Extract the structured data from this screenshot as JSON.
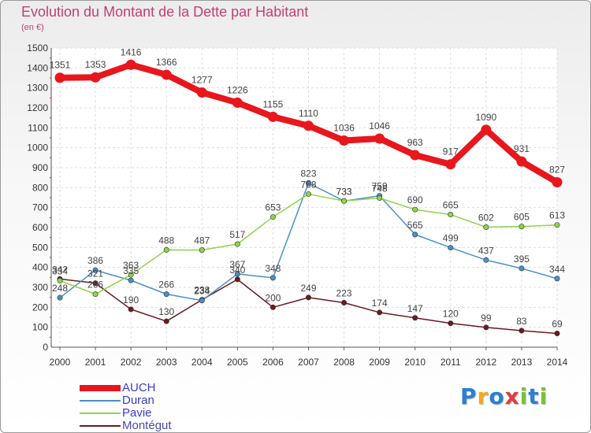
{
  "title": "Evolution du Montant de la Dette par Habitant",
  "subtitle": "(en €)",
  "logo": {
    "text": "Proxiti",
    "letters": [
      {
        "char": "P",
        "color": "#2a7fd4"
      },
      {
        "char": "r",
        "color": "#f5a623"
      },
      {
        "char": "o",
        "color": "#2a7fd4"
      },
      {
        "char": "x",
        "color": "#e03c3c"
      },
      {
        "char": "i",
        "color": "#7cbf3a"
      },
      {
        "char": "t",
        "color": "#2a7fd4"
      },
      {
        "char": "i",
        "color": "#7cbf3a"
      }
    ]
  },
  "chart_data": {
    "type": "line",
    "title": "Evolution du Montant de la Dette par Habitant",
    "subtitle": "(en €)",
    "x": [
      "2000",
      "2001",
      "2002",
      "2003",
      "2004",
      "2005",
      "2006",
      "2007",
      "2008",
      "2009",
      "2010",
      "2011",
      "2012",
      "2013",
      "2014"
    ],
    "ylim": [
      0,
      1500
    ],
    "yticks": [
      0,
      100,
      200,
      300,
      400,
      500,
      600,
      700,
      800,
      900,
      1000,
      1100,
      1200,
      1300,
      1400,
      1500
    ],
    "grid": true,
    "legend_position": "bottom-left",
    "series": [
      {
        "name": "AUCH",
        "color": "#e8161d",
        "values": [
          1351,
          1353,
          1416,
          1366,
          1277,
          1226,
          1155,
          1110,
          1036,
          1046,
          963,
          917,
          1090,
          931,
          827
        ]
      },
      {
        "name": "Duran",
        "color": "#4a90c8",
        "values": [
          248,
          386,
          335,
          266,
          234,
          367,
          348,
          823,
          733,
          759,
          565,
          499,
          437,
          395,
          344
        ]
      },
      {
        "name": "Pavie",
        "color": "#8fd44a",
        "values": [
          334,
          266,
          363,
          488,
          487,
          517,
          653,
          768,
          733,
          748,
          690,
          665,
          602,
          605,
          613
        ]
      },
      {
        "name": "Montégut",
        "color": "#6b1a1e",
        "values": [
          342,
          321,
          190,
          130,
          238,
          340,
          200,
          249,
          223,
          174,
          147,
          120,
          99,
          83,
          69
        ]
      }
    ]
  }
}
